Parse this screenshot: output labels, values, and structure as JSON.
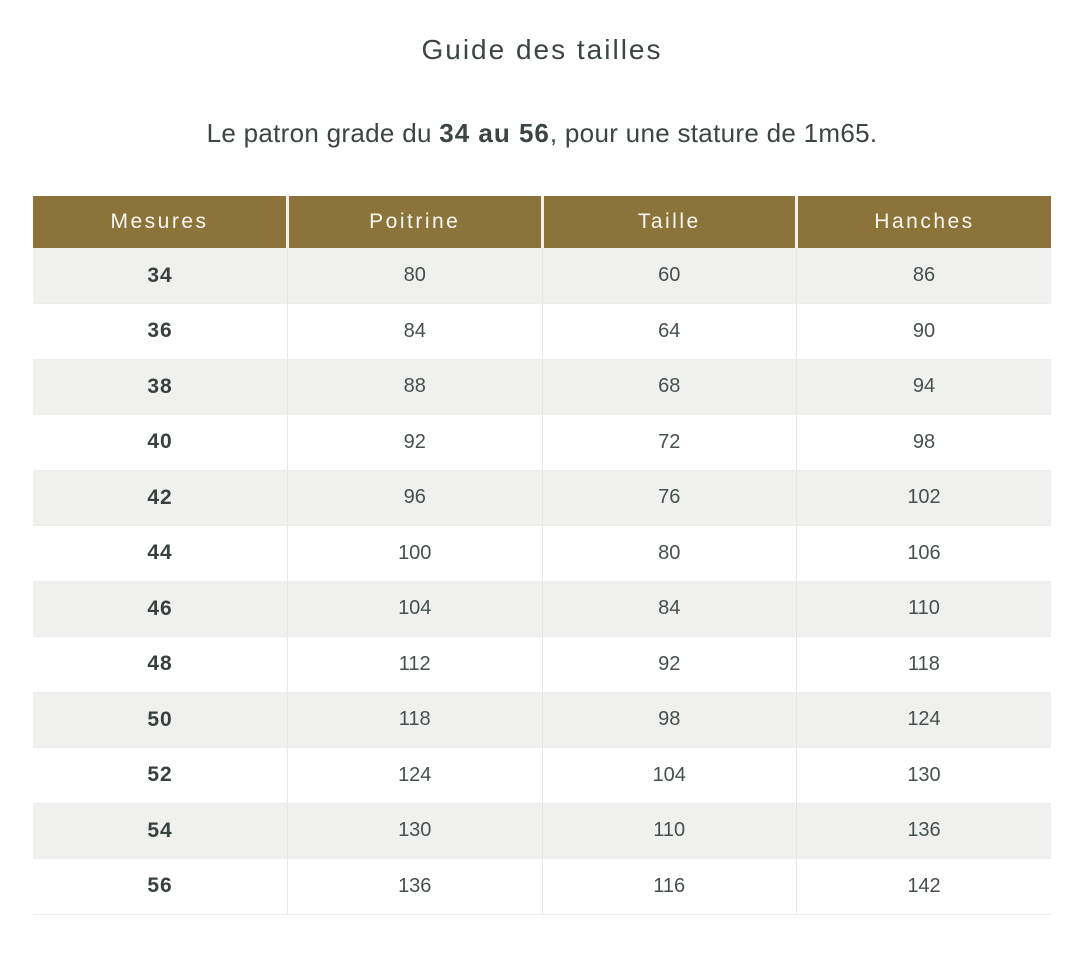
{
  "title": "Guide des tailles",
  "subtitle": {
    "prefix": "Le patron grade du ",
    "bold": "34 au 56",
    "suffix": ", pour une stature de 1m65."
  },
  "size_table": {
    "columns": [
      "Mesures",
      "Poitrine",
      "Taille",
      "Hanches"
    ],
    "rows": [
      [
        "34",
        "80",
        "60",
        "86"
      ],
      [
        "36",
        "84",
        "64",
        "90"
      ],
      [
        "38",
        "88",
        "68",
        "94"
      ],
      [
        "40",
        "92",
        "72",
        "98"
      ],
      [
        "42",
        "96",
        "76",
        "102"
      ],
      [
        "44",
        "100",
        "80",
        "106"
      ],
      [
        "46",
        "104",
        "84",
        "110"
      ],
      [
        "48",
        "112",
        "92",
        "118"
      ],
      [
        "50",
        "118",
        "98",
        "124"
      ],
      [
        "52",
        "124",
        "104",
        "130"
      ],
      [
        "54",
        "130",
        "110",
        "136"
      ],
      [
        "56",
        "136",
        "116",
        "142"
      ]
    ]
  },
  "colors": {
    "header_bg": "#8b7339",
    "header_text": "#faf8f3",
    "row_alt_bg": "#f0f1ef",
    "row_bg": "#ffffff",
    "body_text": "#47504e",
    "title_text": "#3d4543"
  }
}
